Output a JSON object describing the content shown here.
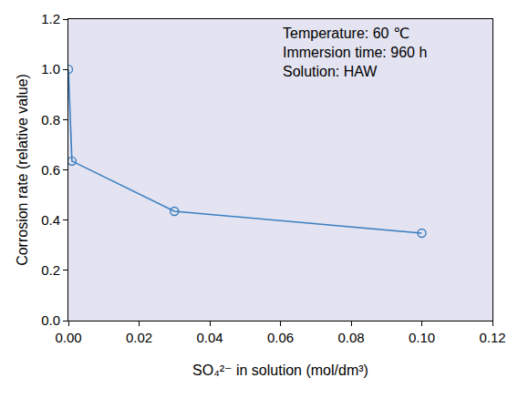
{
  "chart_data": {
    "type": "line",
    "x_label": "SO₄²⁻ in solution (mol/dm³)",
    "y_label": "Corrosion rate (relative value)",
    "annotations": [
      "Temperature: 60 ℃",
      "Immersion time: 960 h",
      "Solution: HAW"
    ],
    "x": [
      0,
      0.001,
      0.03,
      0.1
    ],
    "values": [
      1.0,
      0.635,
      0.435,
      0.348
    ],
    "color": "#3b7fc0",
    "marker": "circle-open",
    "line_style": "solid",
    "grid": false,
    "xlim": [
      0,
      0.12
    ],
    "xticks": [
      {
        "value": 0,
        "label": "0.00"
      },
      {
        "value": 0.02,
        "label": "0.02"
      },
      {
        "value": 0.04,
        "label": "0.04"
      },
      {
        "value": 0.06,
        "label": "0.06"
      },
      {
        "value": 0.08,
        "label": "0.08"
      },
      {
        "value": 0.1,
        "label": "0.10"
      },
      {
        "value": 0.12,
        "label": "0.12"
      }
    ],
    "ylim": [
      0,
      1.2
    ],
    "yticks": [
      {
        "value": 0,
        "label": "0.0"
      },
      {
        "value": 0.2,
        "label": "0.2"
      },
      {
        "value": 0.4,
        "label": "0.4"
      },
      {
        "value": 0.6,
        "label": "0.6"
      },
      {
        "value": 0.8,
        "label": "0.8"
      },
      {
        "value": 1.0,
        "label": "1.0"
      },
      {
        "value": 1.2,
        "label": "1.2"
      }
    ]
  }
}
